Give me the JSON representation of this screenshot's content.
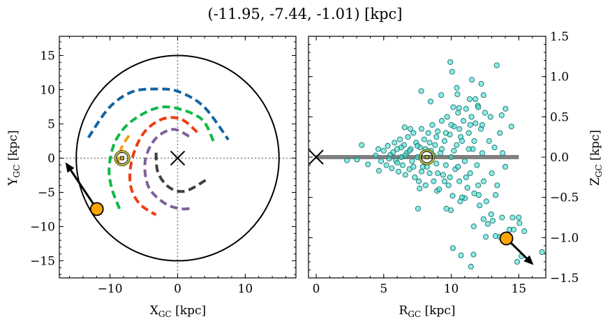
{
  "title": "(-11.95, -7.44, -1.01) [kpc]",
  "chart_data": [
    {
      "type": "line",
      "panel": "left",
      "xlabel": "X",
      "xlabel_sub": "GC",
      "xlabel_unit": " [kpc]",
      "ylabel": "Y",
      "ylabel_sub": "GC",
      "ylabel_unit": " [kpc]",
      "xlim": [
        -17.5,
        17.5
      ],
      "ylim": [
        -17.5,
        17.8
      ],
      "xticks": [
        -10,
        0,
        10
      ],
      "xtick_labels": [
        "−10",
        "0",
        "10"
      ],
      "xminor_step": 2,
      "yticks": [
        -15,
        -10,
        -5,
        0,
        5,
        10,
        15
      ],
      "ytick_labels": [
        "−15",
        "−10",
        "−5",
        "0",
        "5",
        "10",
        "15"
      ],
      "yminor_step": 1,
      "boundary_circle_radius": 15,
      "crosshair_lines": {
        "x": 0,
        "y": 0,
        "style": "dotted",
        "color": "#808080"
      },
      "galactic_center": [
        0,
        0
      ],
      "sun": [
        -8.2,
        0
      ],
      "object": [
        -11.95,
        -7.44
      ],
      "object_arrow_tip": [
        -16.6,
        -0.6
      ],
      "object_color": "#ffa500",
      "sun_color": "#b0b020",
      "arms": [
        {
          "color": "#1464a0",
          "points": [
            [
              -13.2,
              3.0
            ],
            [
              -10.1,
              7.4
            ],
            [
              -6.7,
              9.7
            ],
            [
              -2.9,
              10.1
            ],
            [
              0.2,
              9.7
            ],
            [
              3.9,
              7.5
            ],
            [
              7.5,
              2.7
            ]
          ]
        },
        {
          "color": "#10b848",
          "points": [
            [
              5.3,
              2.5
            ],
            [
              3.3,
              5.9
            ],
            [
              -1.9,
              7.5
            ],
            [
              -6.4,
              5.7
            ],
            [
              -9.1,
              2.7
            ],
            [
              -10.1,
              -1.1
            ],
            [
              -9.8,
              -4.2
            ],
            [
              -8.6,
              -7.4
            ]
          ]
        },
        {
          "color": "#f03c10",
          "points": [
            [
              2.9,
              3.8
            ],
            [
              0.5,
              5.7
            ],
            [
              -2.3,
              5.7
            ],
            [
              -5.0,
              3.7
            ],
            [
              -6.7,
              0.0
            ],
            [
              -7.0,
              -3.8
            ],
            [
              -5.7,
              -6.6
            ],
            [
              -3.2,
              -8.3
            ]
          ]
        },
        {
          "color": "#806098",
          "points": [
            [
              1.7,
              3.2
            ],
            [
              -0.7,
              4.2
            ],
            [
              -3.3,
              2.8
            ],
            [
              -4.8,
              -0.4
            ],
            [
              -4.3,
              -4.2
            ],
            [
              -1.9,
              -6.6
            ],
            [
              0.5,
              -7.4
            ],
            [
              2.2,
              -7.3
            ]
          ]
        },
        {
          "color": "#404040",
          "points": [
            [
              -3.2,
              0.8
            ],
            [
              -2.9,
              -2.1
            ],
            [
              -1.2,
              -4.3
            ],
            [
              1.2,
              -4.8
            ],
            [
              4.5,
              -3.0
            ]
          ]
        },
        {
          "color": "#f0a010",
          "points": [
            [
              -7.2,
              3.3
            ],
            [
              -8.3,
              1.5
            ],
            [
              -8.9,
              -0.9
            ]
          ]
        }
      ]
    },
    {
      "type": "scatter",
      "panel": "right",
      "xlabel": "R",
      "xlabel_sub": "GC",
      "xlabel_unit": " [kpc]",
      "ylabel": "Z",
      "ylabel_sub": "GC",
      "ylabel_unit": " [kpc]",
      "xlim": [
        -0.57,
        17.0
      ],
      "ylim": [
        -1.5,
        1.5
      ],
      "xticks": [
        0,
        5,
        10,
        15
      ],
      "xtick_labels": [
        "0",
        "5",
        "10",
        "15"
      ],
      "xminor_step": 1,
      "yticks": [
        -1.5,
        -1.0,
        -0.5,
        0.0,
        0.5,
        1.0,
        1.5
      ],
      "ytick_labels": [
        "−1.5",
        "−1.0",
        "−0.5",
        "0.0",
        "0.5",
        "1.0",
        "1.5"
      ],
      "yminor_step": 0.1,
      "yaxis_side": "right",
      "disk_line": {
        "x": [
          0,
          15
        ],
        "z": 0,
        "color": "#808080"
      },
      "galactic_center": [
        0,
        0
      ],
      "sun": [
        8.2,
        0
      ],
      "object": [
        14.08,
        -1.01
      ],
      "object_arrow_tip": [
        16.1,
        -1.34
      ],
      "point_color": "#40e0d0",
      "points": [
        [
          9.93,
          1.18
        ],
        [
          10.07,
          1.06
        ],
        [
          13.37,
          1.14
        ],
        [
          11.53,
          0.96
        ],
        [
          12.22,
          0.91
        ],
        [
          7.78,
          0.82
        ],
        [
          10.41,
          0.86
        ],
        [
          10.46,
          0.78
        ],
        [
          8.47,
          0.69
        ],
        [
          9.26,
          0.77
        ],
        [
          11.36,
          0.72
        ],
        [
          11.79,
          0.72
        ],
        [
          12.39,
          0.77
        ],
        [
          10.15,
          0.62
        ],
        [
          10.58,
          0.61
        ],
        [
          11.97,
          0.64
        ],
        [
          14.02,
          0.6
        ],
        [
          13.73,
          0.52
        ],
        [
          14.45,
          0.38
        ],
        [
          6.55,
          0.37
        ],
        [
          6.97,
          0.35
        ],
        [
          3.37,
          0.15
        ],
        [
          2.28,
          -0.04
        ],
        [
          3.02,
          -0.03
        ],
        [
          3.83,
          -0.09
        ],
        [
          4.65,
          -0.17
        ],
        [
          7.54,
          -0.64
        ],
        [
          9.64,
          -0.64
        ],
        [
          9.98,
          -0.66
        ],
        [
          8.95,
          -0.42
        ],
        [
          7.66,
          -0.39
        ],
        [
          10.67,
          -0.55
        ],
        [
          11.01,
          -0.51
        ],
        [
          12.04,
          -0.47
        ],
        [
          13.28,
          -0.47
        ],
        [
          12.96,
          -0.71
        ],
        [
          12.39,
          -0.77
        ],
        [
          13.07,
          -0.79
        ],
        [
          12.7,
          -0.83
        ],
        [
          13.76,
          -0.75
        ],
        [
          14.54,
          -0.75
        ],
        [
          15.0,
          -0.75
        ],
        [
          15.05,
          -0.82
        ],
        [
          11.67,
          -0.86
        ],
        [
          14.31,
          -0.9
        ],
        [
          14.62,
          -0.9
        ],
        [
          15.41,
          -0.92
        ],
        [
          12.56,
          -0.99
        ],
        [
          13.28,
          -0.98
        ],
        [
          10.12,
          -1.13
        ],
        [
          10.72,
          -1.22
        ],
        [
          11.65,
          -1.21
        ],
        [
          11.46,
          -1.36
        ],
        [
          14.88,
          -1.3
        ],
        [
          16.72,
          -1.18
        ],
        [
          15.2,
          -1.23
        ],
        [
          13.59,
          -0.99
        ],
        [
          4.4,
          0.02
        ],
        [
          4.6,
          0.1
        ],
        [
          4.8,
          -0.05
        ],
        [
          5.0,
          0.08
        ],
        [
          5.2,
          -0.1
        ],
        [
          5.3,
          0.14
        ],
        [
          5.5,
          0.03
        ],
        [
          5.6,
          -0.14
        ],
        [
          5.8,
          0.18
        ],
        [
          5.9,
          -0.04
        ],
        [
          6.0,
          0.1
        ],
        [
          6.1,
          -0.18
        ],
        [
          6.2,
          0.22
        ],
        [
          6.3,
          0.0
        ],
        [
          6.4,
          -0.1
        ],
        [
          6.5,
          0.15
        ],
        [
          6.6,
          -0.22
        ],
        [
          6.7,
          0.05
        ],
        [
          6.8,
          0.25
        ],
        [
          6.9,
          -0.15
        ],
        [
          7.0,
          0.1
        ],
        [
          7.1,
          -0.05
        ],
        [
          7.2,
          0.3
        ],
        [
          7.3,
          -0.25
        ],
        [
          7.4,
          0.18
        ],
        [
          7.5,
          0.0
        ],
        [
          7.6,
          -0.3
        ],
        [
          7.7,
          0.12
        ],
        [
          7.8,
          0.35
        ],
        [
          7.9,
          -0.12
        ],
        [
          8.0,
          0.22
        ],
        [
          8.1,
          -0.35
        ],
        [
          8.3,
          0.3
        ],
        [
          8.4,
          -0.2
        ],
        [
          8.5,
          0.08
        ],
        [
          8.6,
          0.4
        ],
        [
          8.7,
          -0.3
        ],
        [
          8.8,
          0.15
        ],
        [
          8.9,
          -0.08
        ],
        [
          9.0,
          0.32
        ],
        [
          9.1,
          -0.4
        ],
        [
          9.2,
          0.05
        ],
        [
          9.3,
          0.45
        ],
        [
          9.4,
          -0.22
        ],
        [
          9.5,
          0.2
        ],
        [
          9.6,
          -0.1
        ],
        [
          9.7,
          0.5
        ],
        [
          9.8,
          -0.35
        ],
        [
          9.9,
          0.28
        ],
        [
          10.0,
          0.0
        ],
        [
          10.1,
          -0.48
        ],
        [
          10.2,
          0.38
        ],
        [
          10.3,
          -0.15
        ],
        [
          10.4,
          0.15
        ],
        [
          10.5,
          0.55
        ],
        [
          10.6,
          -0.3
        ],
        [
          10.7,
          0.25
        ],
        [
          10.8,
          -0.5
        ],
        [
          10.9,
          0.45
        ],
        [
          11.0,
          -0.05
        ],
        [
          11.1,
          0.6
        ],
        [
          11.2,
          -0.38
        ],
        [
          11.3,
          0.3
        ],
        [
          11.4,
          -0.2
        ],
        [
          11.5,
          0.5
        ],
        [
          11.6,
          0.1
        ],
        [
          11.7,
          -0.45
        ],
        [
          11.8,
          0.42
        ],
        [
          11.9,
          -0.1
        ],
        [
          12.0,
          0.62
        ],
        [
          12.1,
          -0.6
        ],
        [
          12.2,
          0.35
        ],
        [
          12.3,
          0.05
        ],
        [
          12.4,
          -0.3
        ],
        [
          12.5,
          0.55
        ],
        [
          12.6,
          -0.55
        ],
        [
          12.8,
          0.2
        ],
        [
          12.9,
          0.5
        ],
        [
          13.0,
          -0.2
        ],
        [
          13.2,
          0.12
        ],
        [
          13.4,
          -0.35
        ],
        [
          13.6,
          0.3
        ],
        [
          13.8,
          0.05
        ],
        [
          14.0,
          -0.12
        ],
        [
          5.4,
          -0.02
        ],
        [
          5.7,
          0.06
        ],
        [
          6.0,
          -0.07
        ],
        [
          6.3,
          0.12
        ],
        [
          6.6,
          0.02
        ],
        [
          6.9,
          0.08
        ],
        [
          7.2,
          -0.12
        ],
        [
          7.5,
          0.14
        ],
        [
          7.8,
          -0.18
        ],
        [
          8.1,
          0.1
        ],
        [
          8.4,
          0.18
        ],
        [
          8.7,
          0.02
        ],
        [
          9.0,
          -0.2
        ],
        [
          9.3,
          0.1
        ],
        [
          9.6,
          0.3
        ],
        [
          9.9,
          -0.25
        ],
        [
          10.2,
          0.08
        ],
        [
          10.5,
          -0.12
        ],
        [
          10.8,
          0.2
        ],
        [
          11.1,
          -0.25
        ],
        [
          11.4,
          0.4
        ],
        [
          11.7,
          0.2
        ],
        [
          12.0,
          -0.35
        ],
        [
          12.3,
          0.4
        ],
        [
          8.2,
          -0.12
        ],
        [
          8.9,
          0.25
        ],
        [
          9.5,
          -0.3
        ],
        [
          10.0,
          0.4
        ],
        [
          10.6,
          0.35
        ],
        [
          11.3,
          0.1
        ]
      ]
    }
  ]
}
